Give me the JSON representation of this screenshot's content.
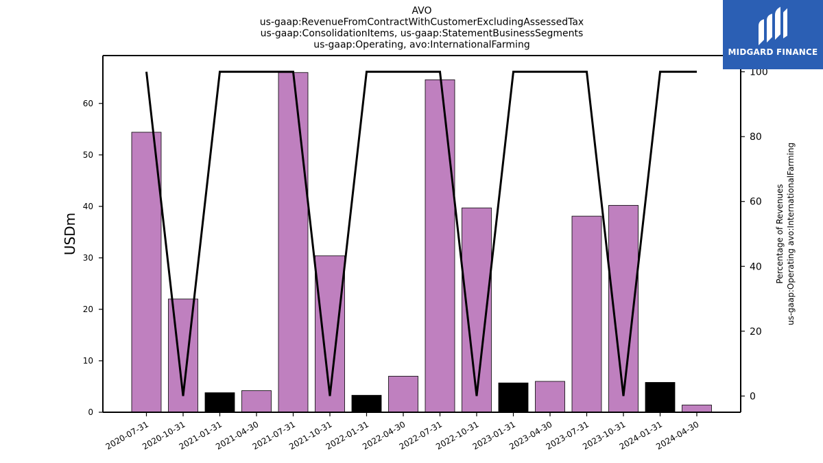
{
  "chart_data": {
    "type": "bar",
    "title_lines": [
      "AVO",
      "us-gaap:RevenueFromContractWithCustomerExcludingAssessedTax",
      "us-gaap:ConsolidationItems, us-gaap:StatementBusinessSegments",
      "us-gaap:Operating, avo:InternationalFarming"
    ],
    "ylabel": "USDm",
    "y2label_lines": [
      "Percentage of Revenues",
      "us-gaap:Operating avo:InternationalFarming"
    ],
    "ylim": [
      0,
      69.3
    ],
    "y2lim": [
      -5,
      105
    ],
    "yticks": [
      0,
      10,
      20,
      30,
      40,
      50,
      60
    ],
    "y2ticks": [
      0,
      20,
      40,
      60,
      80,
      100
    ],
    "categories": [
      "2020-07-31",
      "2020-10-31",
      "2021-01-31",
      "2021-04-30",
      "2021-07-31",
      "2021-10-31",
      "2022-01-31",
      "2022-04-30",
      "2022-07-31",
      "2022-10-31",
      "2023-01-31",
      "2023-04-30",
      "2023-07-31",
      "2023-10-31",
      "2024-01-31",
      "2024-04-30"
    ],
    "series": [
      {
        "values": [
          54.4,
          22.0,
          3.8,
          4.2,
          66.0,
          30.4,
          3.3,
          7.0,
          64.6,
          39.7,
          5.7,
          6.0,
          38.1,
          40.2,
          5.8,
          1.4
        ],
        "colors": [
          "#bf80bf",
          "#bf80bf",
          "#000000",
          "#bf80bf",
          "#bf80bf",
          "#bf80bf",
          "#000000",
          "#bf80bf",
          "#bf80bf",
          "#bf80bf",
          "#000000",
          "#bf80bf",
          "#bf80bf",
          "#bf80bf",
          "#000000",
          "#bf80bf"
        ],
        "axis": "left"
      },
      {
        "type": "line",
        "values": [
          100,
          0,
          100,
          100,
          100,
          0,
          100,
          100,
          100,
          0,
          100,
          100,
          100,
          0,
          100,
          100
        ],
        "color": "#000000",
        "axis": "right"
      }
    ],
    "grid": false,
    "legend": "none"
  },
  "logo": {
    "text": "MIDGARD FINANCE",
    "background": "#2b5fb4"
  }
}
